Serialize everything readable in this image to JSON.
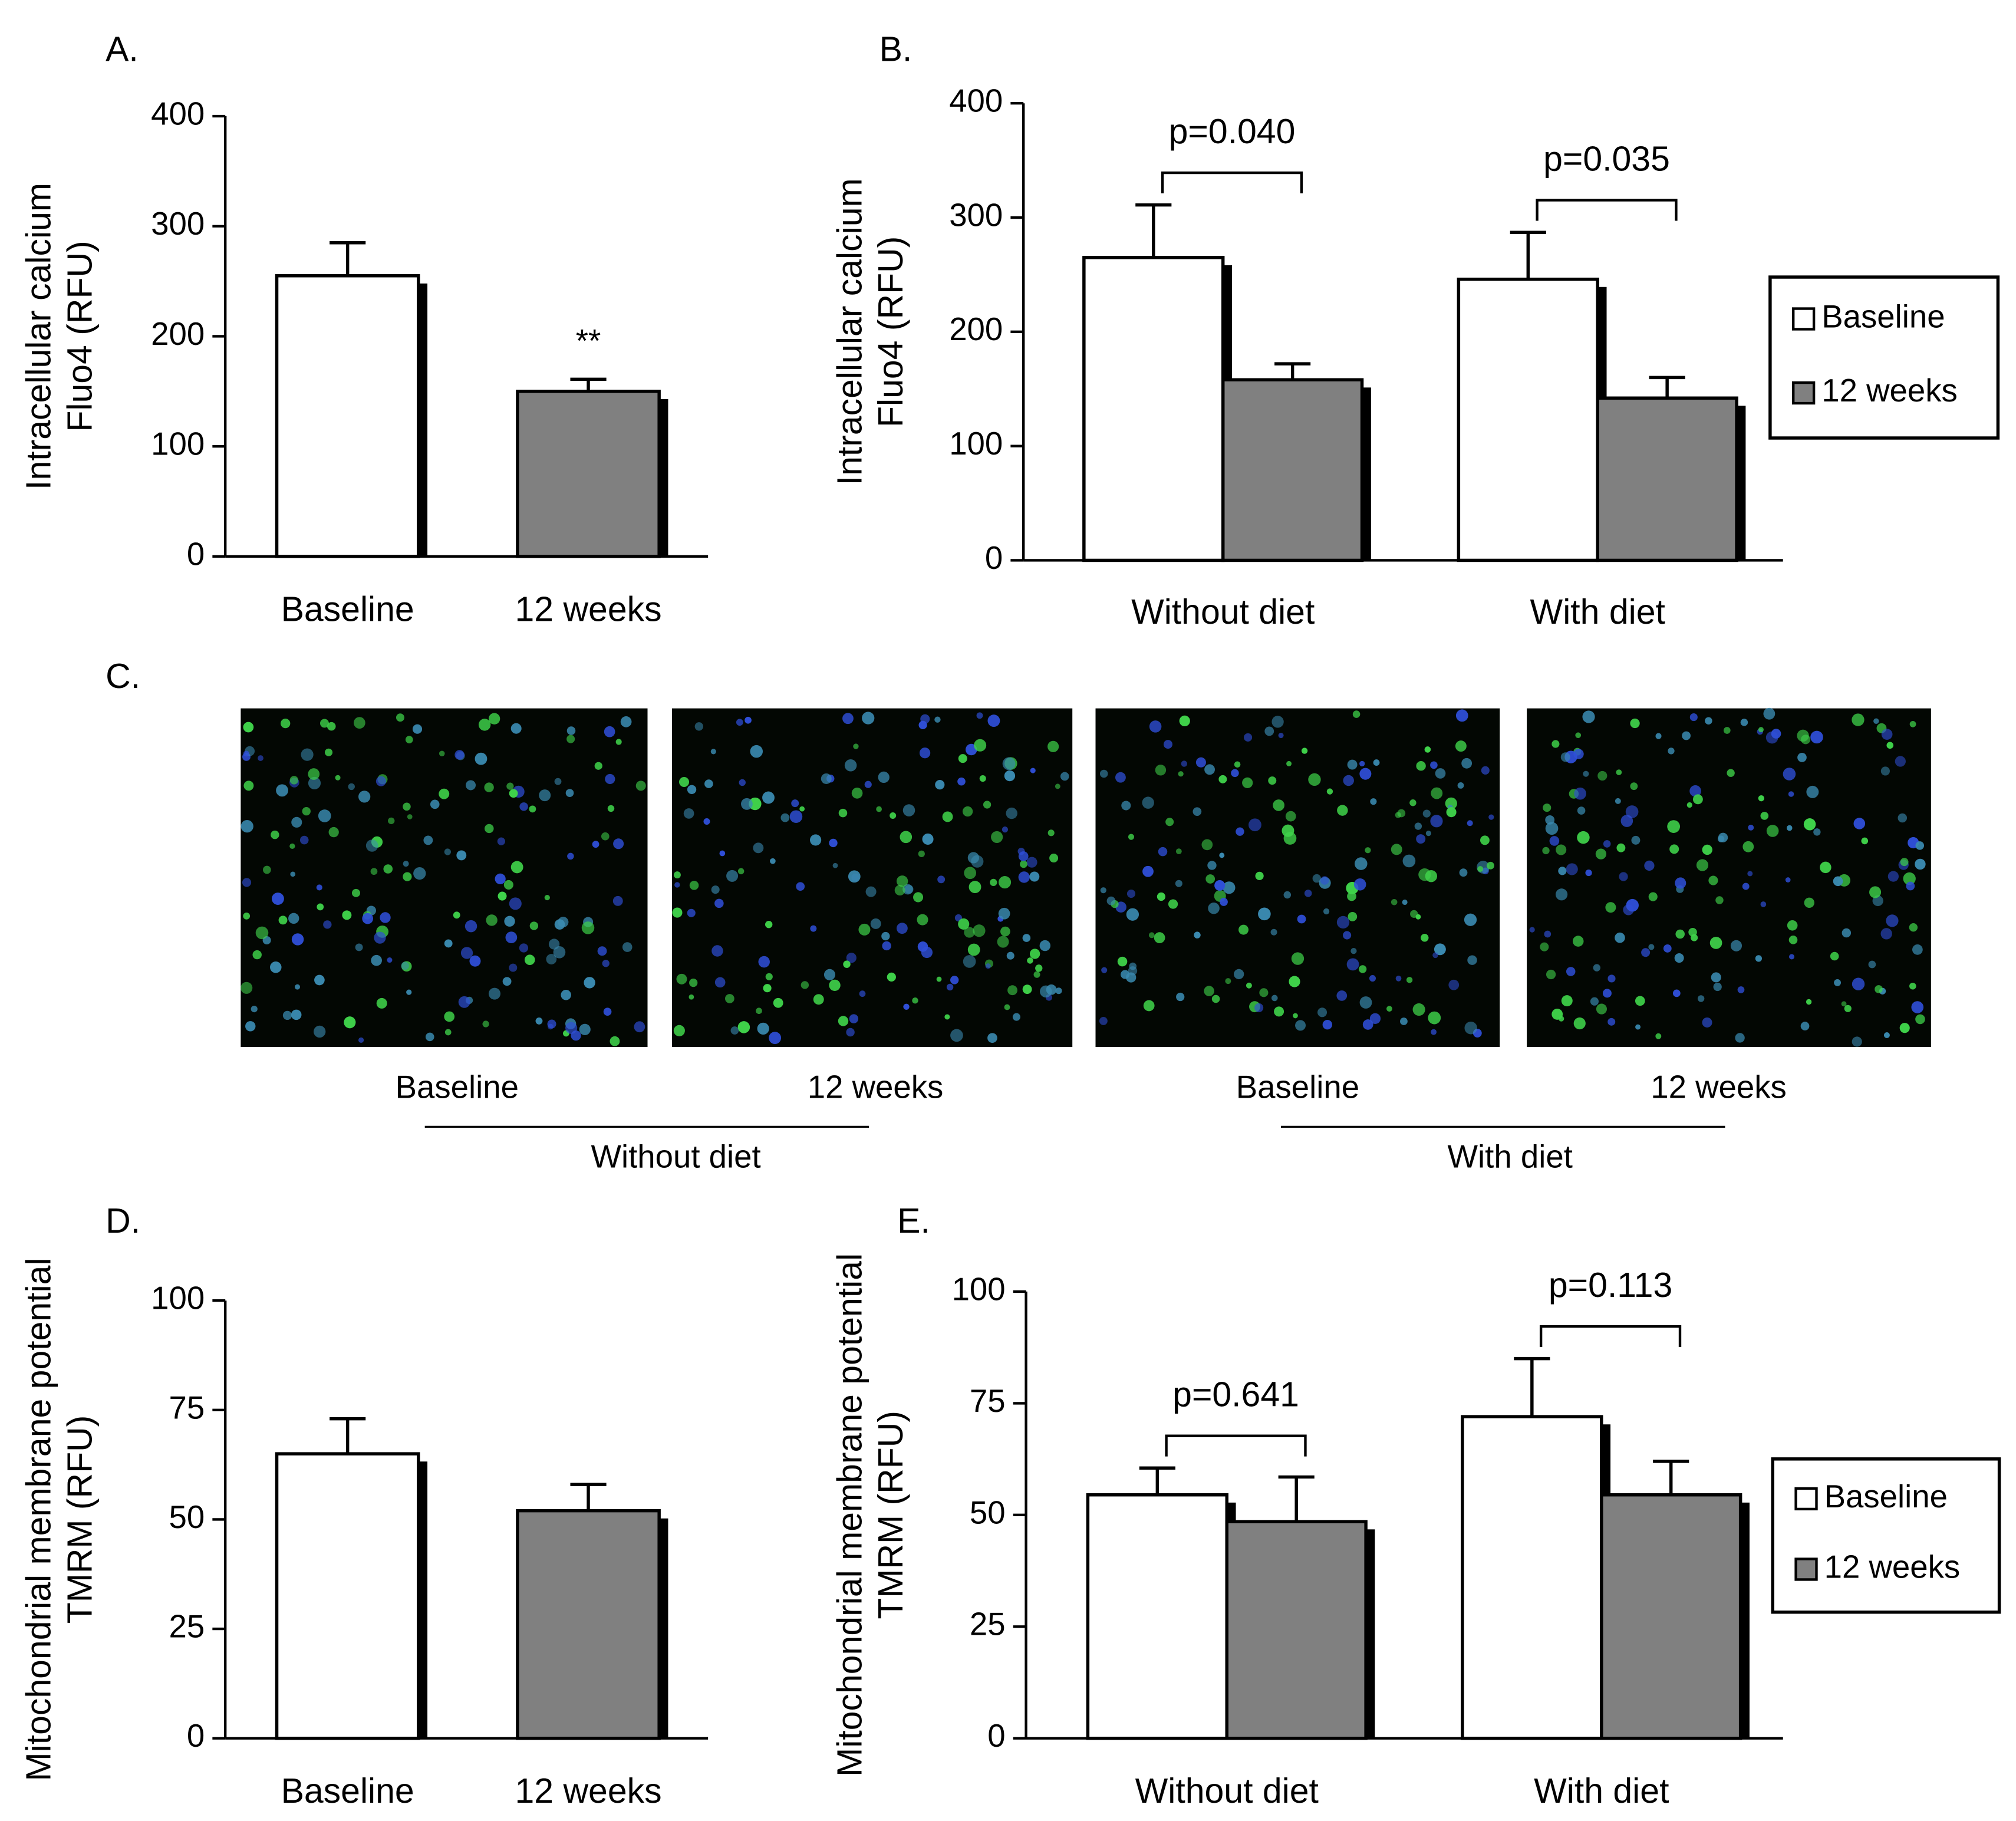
{
  "chart_data": [
    {
      "type": "bar",
      "panel": "A.",
      "ylabel": [
        "Intracellular calcium",
        "Fluo4 (RFU)"
      ],
      "categories": [
        "Baseline",
        "12 weeks"
      ],
      "values": [
        255,
        150
      ],
      "errors": [
        30,
        11
      ],
      "colors": [
        "#ffffff",
        "#808080"
      ],
      "annotations": [
        null,
        "**"
      ],
      "ylim": [
        0,
        400
      ],
      "yticks": [
        0,
        100,
        200,
        300,
        400
      ]
    },
    {
      "type": "bar",
      "panel": "B.",
      "ylabel": [
        "Intracellular calcium",
        "Fluo4 (RFU)"
      ],
      "categories": [
        "Without diet",
        "With diet"
      ],
      "series": [
        {
          "name": "Baseline",
          "color": "#ffffff",
          "values": [
            265,
            246
          ],
          "errors": [
            46,
            41
          ]
        },
        {
          "name": "12 weeks",
          "color": "#808080",
          "values": [
            158,
            142
          ],
          "errors": [
            14,
            18
          ]
        }
      ],
      "brackets": [
        "p=0.040",
        "p=0.035"
      ],
      "legend": "right",
      "ylim": [
        0,
        400
      ],
      "yticks": [
        0,
        100,
        200,
        300,
        400
      ]
    },
    {
      "type": "bar",
      "panel": "D.",
      "ylabel": [
        "Mitochondrial membrane potential",
        "TMRM (RFU)"
      ],
      "categories": [
        "Baseline",
        "12 weeks"
      ],
      "values": [
        65,
        52
      ],
      "errors": [
        8,
        6
      ],
      "colors": [
        "#ffffff",
        "#808080"
      ],
      "ylim": [
        0,
        100
      ],
      "yticks": [
        0,
        25,
        50,
        75,
        100
      ]
    },
    {
      "type": "bar",
      "panel": "E.",
      "ylabel": [
        "Mitochondrial membrane potential",
        "TMRM (RFU)"
      ],
      "categories": [
        "Without diet",
        "With diet"
      ],
      "series": [
        {
          "name": "Baseline",
          "color": "#ffffff",
          "values": [
            54.5,
            72
          ],
          "errors": [
            6,
            13
          ]
        },
        {
          "name": "12 weeks",
          "color": "#808080",
          "values": [
            48.5,
            54.5
          ],
          "errors": [
            10,
            7.5
          ]
        }
      ],
      "brackets": [
        "p=0.641",
        "p=0.113"
      ],
      "legend": "right",
      "ylim": [
        0,
        100
      ],
      "yticks": [
        0,
        25,
        50,
        75,
        100
      ]
    }
  ],
  "panel_c": {
    "label": "C.",
    "image_labels": [
      "Baseline",
      "12 weeks",
      "Baseline",
      "12 weeks"
    ],
    "group_labels": [
      "Without diet",
      "With diet"
    ]
  }
}
